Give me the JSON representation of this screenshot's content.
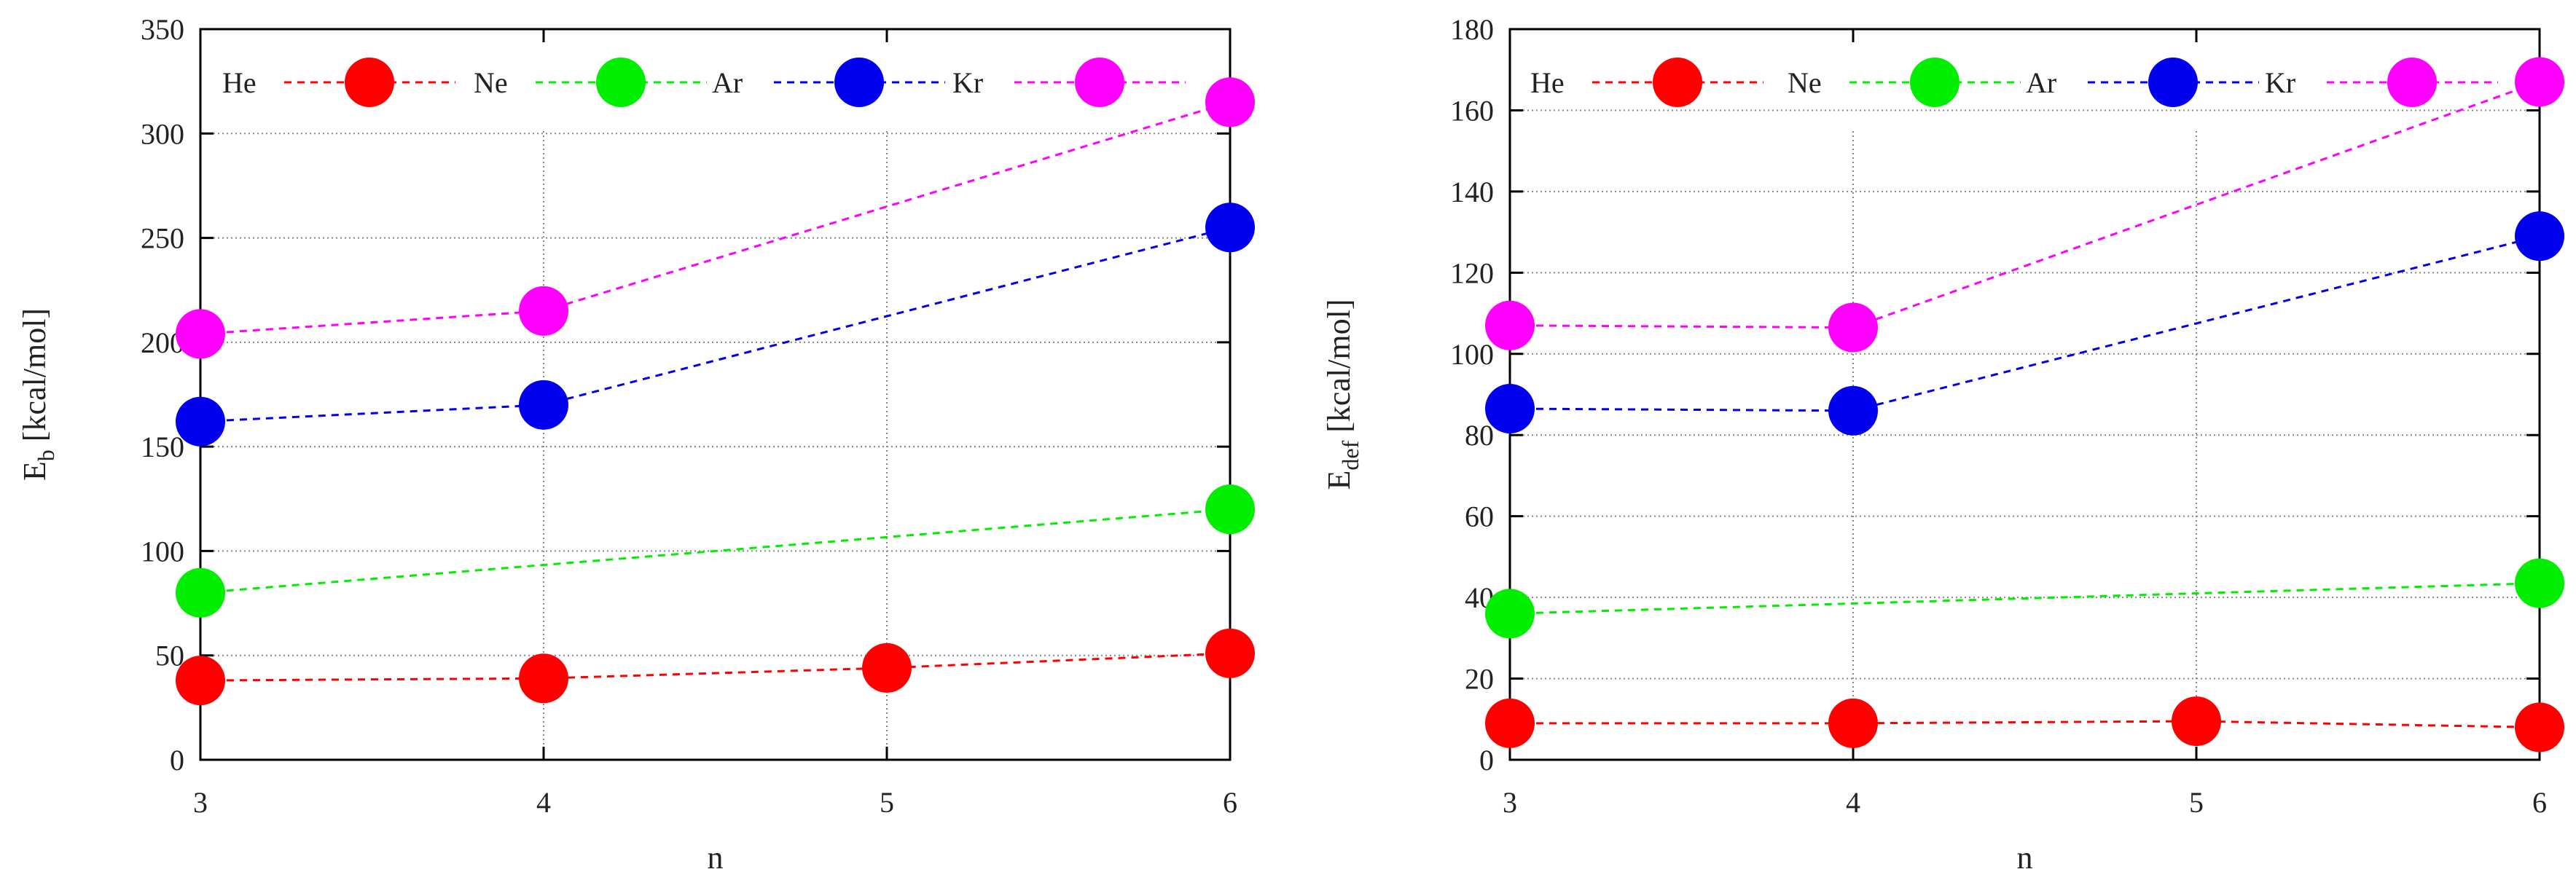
{
  "chart_data": [
    {
      "type": "line",
      "id": "left",
      "xlabel": "n",
      "ylabel_main": "E",
      "ylabel_sub": "b",
      "ylabel_units": " [kcal/mol]",
      "x": [
        3,
        4,
        5,
        6
      ],
      "xlim": [
        3,
        6
      ],
      "ylim": [
        0,
        350
      ],
      "xticks": [
        3,
        4,
        5,
        6
      ],
      "yticks": [
        0,
        50,
        100,
        150,
        200,
        250,
        300,
        350
      ],
      "grid": "dotted",
      "legend": "top",
      "series": [
        {
          "name": "He",
          "color": "#ff0000",
          "points": [
            [
              3,
              38
            ],
            [
              4,
              39
            ],
            [
              5,
              44
            ],
            [
              6,
              51
            ]
          ]
        },
        {
          "name": "Ne",
          "color": "#00ee00",
          "points": [
            [
              3,
              80
            ],
            [
              6,
              120
            ]
          ]
        },
        {
          "name": "Ar",
          "color": "#0000ee",
          "points": [
            [
              3,
              162
            ],
            [
              4,
              170
            ],
            [
              6,
              255
            ]
          ]
        },
        {
          "name": "Kr",
          "color": "#ff00ff",
          "points": [
            [
              3,
              204
            ],
            [
              4,
              215
            ],
            [
              6,
              315
            ]
          ]
        }
      ]
    },
    {
      "type": "line",
      "id": "right",
      "xlabel": "n",
      "ylabel_main": "E",
      "ylabel_sub": "def",
      "ylabel_units": " [kcal/mol]",
      "x": [
        3,
        4,
        5,
        6
      ],
      "xlim": [
        3,
        6
      ],
      "ylim": [
        0,
        180
      ],
      "xticks": [
        3,
        4,
        5,
        6
      ],
      "yticks": [
        0,
        20,
        40,
        60,
        80,
        100,
        120,
        140,
        160,
        180
      ],
      "grid": "dotted",
      "legend": "top",
      "series": [
        {
          "name": "He",
          "color": "#ff0000",
          "points": [
            [
              3,
              9
            ],
            [
              4,
              9
            ],
            [
              5,
              9.5
            ],
            [
              6,
              8
            ]
          ]
        },
        {
          "name": "Ne",
          "color": "#00ee00",
          "points": [
            [
              3,
              36
            ],
            [
              6,
              43.5
            ]
          ]
        },
        {
          "name": "Ar",
          "color": "#0000ee",
          "points": [
            [
              3,
              86.5
            ],
            [
              4,
              86
            ],
            [
              6,
              129
            ]
          ]
        },
        {
          "name": "Kr",
          "color": "#ff00ff",
          "points": [
            [
              3,
              107
            ],
            [
              4,
              106.5
            ],
            [
              6,
              167
            ]
          ]
        }
      ]
    }
  ]
}
